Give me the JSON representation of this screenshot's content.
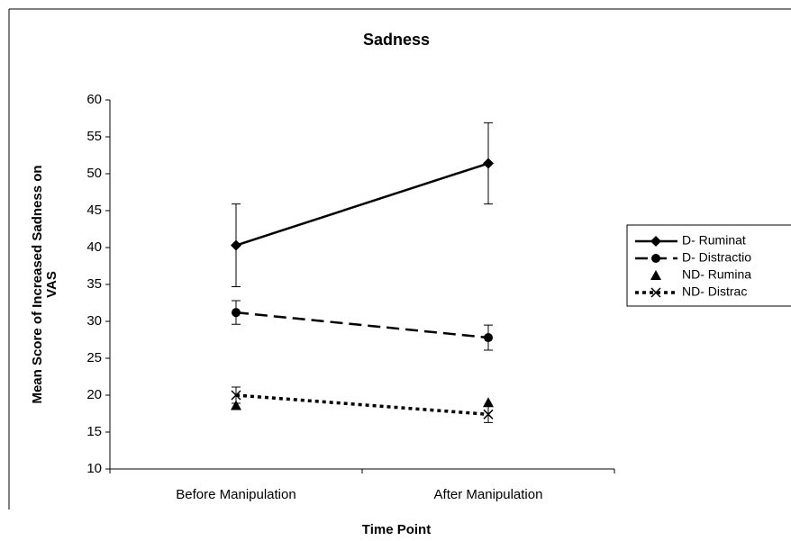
{
  "chart_data": {
    "type": "line",
    "title": "Sadness",
    "xlabel": "Time Point",
    "ylabel": [
      "Mean Score of Increased Sadness on",
      "VAS"
    ],
    "categories": [
      "Before Manipulation",
      "After Manipulation"
    ],
    "ylim": [
      10,
      60
    ],
    "yticks": [
      10,
      15,
      20,
      25,
      30,
      35,
      40,
      45,
      50,
      55,
      60
    ],
    "series": [
      {
        "name": "D- Ruminat",
        "color": "#000000",
        "dash": "solid",
        "marker": "diamond",
        "values": [
          40.3,
          51.4
        ],
        "errors": [
          5.6,
          5.5
        ]
      },
      {
        "name": "D- Distractio",
        "color": "#000000",
        "dash": "dashed",
        "marker": "circle",
        "values": [
          31.2,
          27.8
        ],
        "errors": [
          1.6,
          1.7
        ]
      },
      {
        "name": "ND- Rumina",
        "color": "#000000",
        "dash": "none",
        "marker": "triangle",
        "values": [
          18.6,
          19.0
        ]
      },
      {
        "name": "ND- Distrac",
        "color": "#000000",
        "dash": "dotted",
        "marker": "x",
        "values": [
          20.0,
          17.4
        ],
        "errors": [
          1.1,
          1.1
        ]
      }
    ]
  }
}
